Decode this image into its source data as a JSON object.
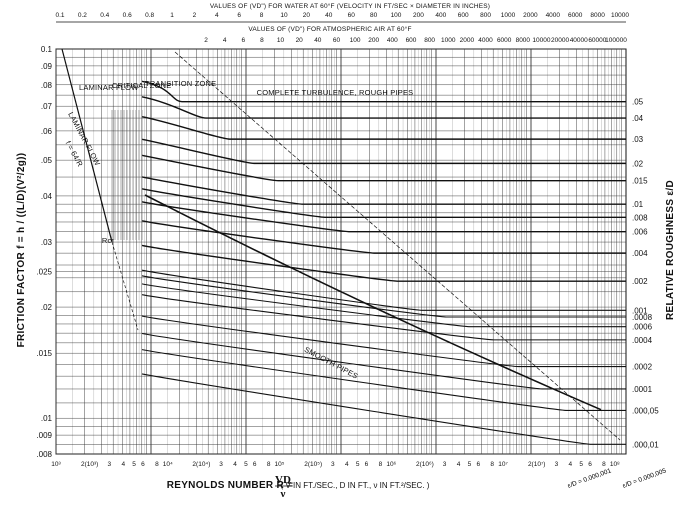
{
  "chart_data": {
    "type": "line",
    "title": "",
    "x_scale": "log",
    "y_scale": "log",
    "xlim": [
      600,
      1000000
    ],
    "ylim": [
      0.008,
      0.1
    ],
    "grid": true,
    "xlabel": {
      "lead": "REYNOLDS NUMBER",
      "symbol": "R",
      "equals": "=",
      "numerator": "VD",
      "denominator": "ν",
      "units_open": "( V IN",
      "units_ft": "FT.",
      "units_sec": "SEC.",
      "units_mid": ", D IN FT., ν IN",
      "units_ft2": "FT.²",
      "units_close": ")"
    },
    "ylabel": "FRICTION FACTOR f = h / ((L/D)(V²/2g))",
    "right_label": "RELATIVE ROUGHNESS ε/D",
    "top_axis_water_title": "VALUES OF (VD\") FOR WATER AT 60°F (VELOCITY IN FT/SEC × DIAMETER IN INCHES)",
    "top_axis_air_title": "VALUES OF (VD\") FOR ATMOSPHERIC AIR AT 60°F",
    "top_water_ticks": [
      "0.1",
      "0.2",
      "0.4",
      "0.6",
      "0.8",
      "1",
      "2",
      "4",
      "6",
      "8",
      "10",
      "20",
      "40",
      "60",
      "80",
      "100",
      "200",
      "400",
      "600",
      "800",
      "1000",
      "2000",
      "4000",
      "6000",
      "8000",
      "10000"
    ],
    "top_air_ticks": [
      "2",
      "4",
      "6",
      "8",
      "10",
      "20",
      "40",
      "60",
      "100",
      "200",
      "400",
      "600",
      "800",
      "1000",
      "2000",
      "4000",
      "6000",
      "8000",
      "10000",
      "20000",
      "40000",
      "60000",
      "100000"
    ],
    "y_tick_labels": [
      "0.1",
      ".09",
      ".08",
      ".07",
      ".06",
      ".05",
      ".04",
      ".03",
      ".025",
      ".02",
      ".015",
      ".01",
      ".009",
      ".008"
    ],
    "y_tick_values": [
      0.1,
      0.09,
      0.08,
      0.07,
      0.06,
      0.05,
      0.04,
      0.03,
      0.025,
      0.02,
      0.015,
      0.01,
      0.009,
      0.008
    ],
    "x_tick_labels": [
      "10³",
      "2(10³)",
      "3",
      "4",
      "5",
      "6",
      "8",
      "10⁴",
      "2(10⁴)",
      "3",
      "4",
      "5",
      "6",
      "8",
      "10⁵",
      "2(10⁵)",
      "3",
      "4",
      "5",
      "6",
      "8",
      "10⁶",
      "2(10⁶)",
      "3",
      "4",
      "5",
      "6",
      "8",
      "10⁷",
      "2(10⁷)",
      "3",
      "4",
      "5",
      "6",
      "8",
      "10⁸"
    ],
    "annotations": {
      "laminar_zone": "LAMINAR FLOW",
      "critical_zone": "CRITICAL ZONE",
      "transition_zone": "TRANSITION ZONE",
      "complete_turbulence": "COMPLETE TURBULENCE, ROUGH PIPES",
      "laminar_flow": "LAMINAR FLOW",
      "laminar_eq": "f = 64/R",
      "rcr": "Rcr",
      "smooth_pipes": "SMOOTH PIPES",
      "eps_000001": "ε/D = 0.000,001",
      "eps_0000005": "ε/D = 0.000,005"
    },
    "series": [
      {
        "roughness": 0.05,
        "label": ".05",
        "f": 0.072
      },
      {
        "roughness": 0.04,
        "label": ".04",
        "f": 0.065
      },
      {
        "roughness": 0.03,
        "label": ".03",
        "f": 0.057
      },
      {
        "roughness": 0.02,
        "label": ".02",
        "f": 0.049
      },
      {
        "roughness": 0.015,
        "label": ".015",
        "f": 0.044
      },
      {
        "roughness": 0.01,
        "label": ".01",
        "f": 0.038
      },
      {
        "roughness": 0.008,
        "label": ".008",
        "f": 0.035
      },
      {
        "roughness": 0.006,
        "label": ".006",
        "f": 0.032
      },
      {
        "roughness": 0.004,
        "label": ".004",
        "f": 0.028
      },
      {
        "roughness": 0.002,
        "label": ".002",
        "f": 0.0235
      },
      {
        "roughness": 0.001,
        "label": ".001",
        "f": 0.0196
      },
      {
        "roughness": 0.0008,
        "label": ".0008",
        "f": 0.0188
      },
      {
        "roughness": 0.0006,
        "label": ".0006",
        "f": 0.0177
      },
      {
        "roughness": 0.0004,
        "label": ".0004",
        "f": 0.0163
      },
      {
        "roughness": 0.0002,
        "label": ".0002",
        "f": 0.0138
      },
      {
        "roughness": 0.0001,
        "label": ".0001",
        "f": 0.012
      },
      {
        "roughness": 5e-05,
        "label": ".000,05",
        "f": 0.0105
      },
      {
        "roughness": 1e-05,
        "label": ".000,01",
        "f": 0.0085
      }
    ]
  }
}
